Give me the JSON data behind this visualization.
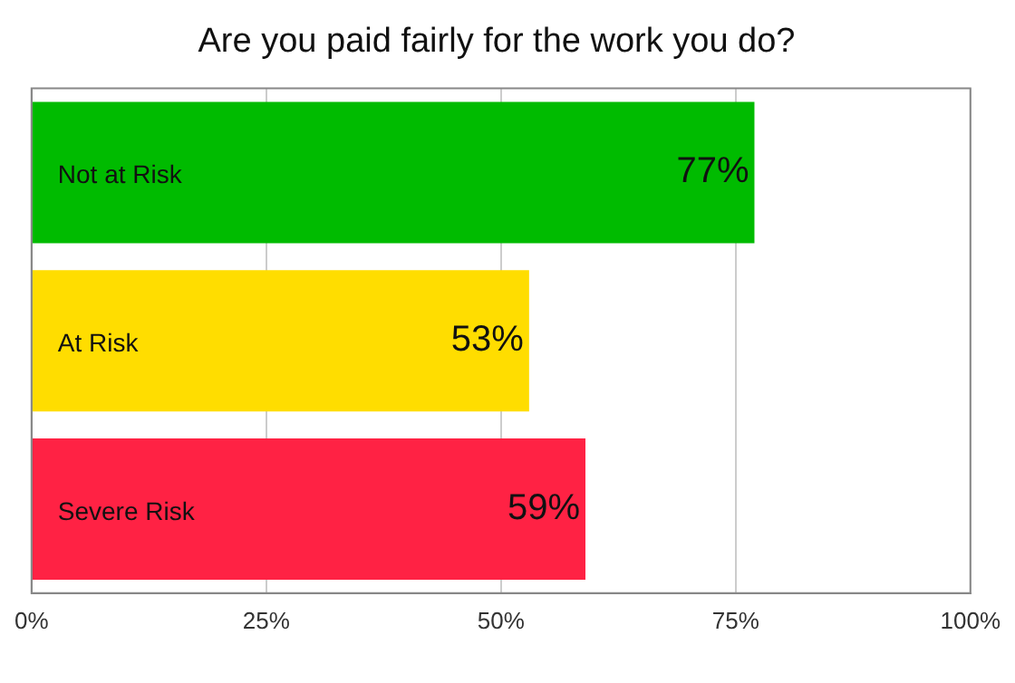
{
  "chart_data": {
    "type": "bar",
    "orientation": "horizontal",
    "title": "Are you paid fairly for the work you do?",
    "categories": [
      "Not at Risk",
      "At Risk",
      "Severe Risk"
    ],
    "values": [
      77,
      53,
      59
    ],
    "colors": [
      "#00bb00",
      "#ffdd00",
      "#ff2244"
    ],
    "value_labels": [
      "77%",
      "53%",
      "59%"
    ],
    "xlim": [
      0,
      100
    ],
    "xticks": [
      {
        "value": 0,
        "label": "0%"
      },
      {
        "value": 25,
        "label": "25%"
      },
      {
        "value": 50,
        "label": "50%"
      },
      {
        "value": 75,
        "label": "75%"
      },
      {
        "value": 100,
        "label": "100%"
      }
    ],
    "grid": "x"
  }
}
